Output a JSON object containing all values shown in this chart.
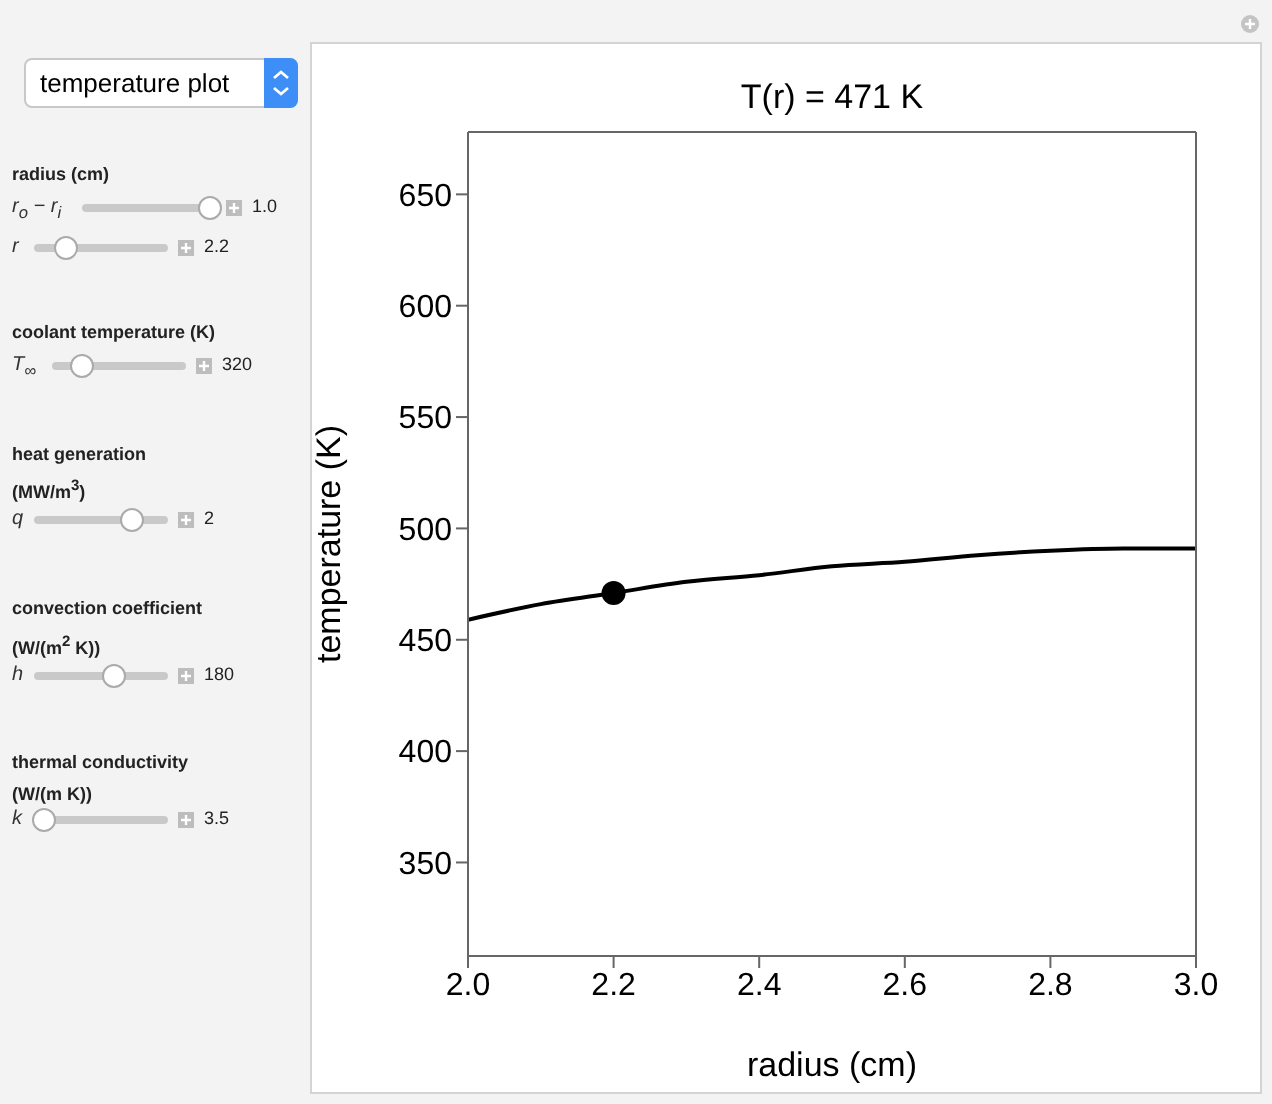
{
  "chart_data": {
    "type": "line",
    "title": "T(r) = 471 K",
    "xlabel": "radius (cm)",
    "ylabel": "temperature (K)",
    "xlim": [
      2.0,
      3.0
    ],
    "xticks": [
      {
        "value": 2.0,
        "label": "2.0"
      },
      {
        "value": 2.2,
        "label": "2.2"
      },
      {
        "value": 2.4,
        "label": "2.4"
      },
      {
        "value": 2.6,
        "label": "2.6"
      },
      {
        "value": 2.8,
        "label": "2.8"
      },
      {
        "value": 3.0,
        "label": "3.0"
      }
    ],
    "ylim": [
      308,
      678
    ],
    "yticks": [
      350,
      400,
      450,
      500,
      550,
      600,
      650
    ],
    "series": [
      {
        "color": "#000000",
        "x": [
          2.0,
          2.1,
          2.2,
          2.3,
          2.4,
          2.5,
          2.6,
          2.7,
          2.8,
          2.9,
          3.0
        ],
        "values": [
          459,
          466,
          471,
          476,
          479,
          483,
          485,
          488,
          490,
          491,
          491
        ]
      },
      {
        "type": "scatter",
        "color": "#000000",
        "marker": "circle",
        "x": [
          2.2
        ],
        "values": [
          471
        ]
      }
    ],
    "annotations": [
      "temperature plot",
      "radius (cm)",
      "r$_{o}$ − r$_{i}$",
      "1.0",
      "r",
      "2.2",
      "coolant temperature (K)",
      "T$_{∞}$",
      "320",
      "heat generation",
      "(MW/m$^{3}$)",
      "q",
      "2",
      "convection coefficient",
      "(W/(m$^{2}$ K))",
      "h",
      "180",
      "thermal conductivity",
      "(W/(m K))",
      "k",
      "3.5"
    ]
  }
}
